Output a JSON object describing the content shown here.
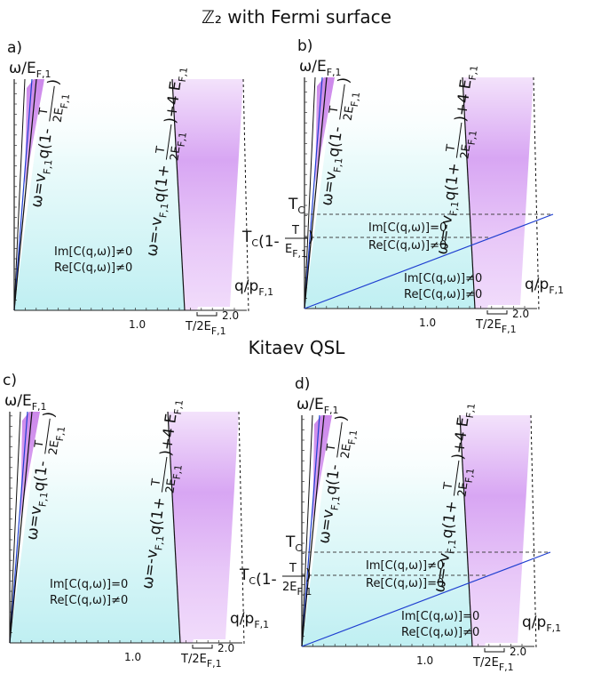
{
  "sections": [
    {
      "title": "ℤ₂ with Fermi surface"
    },
    {
      "title": "Kitaev QSL"
    }
  ],
  "panels": [
    {
      "label": "a)",
      "tc": false,
      "im": "Im[C(q,ω)]≠0",
      "re": "Re[C(q,ω)]≠0"
    },
    {
      "label": "b)",
      "tc": true,
      "upper_im": "Im[C(q,ω)]=0",
      "upper_re": "Re[C(q,ω)]≠0",
      "im": "Im[C(q,ω)]≠0",
      "re": "Re[C(q,ω)]≠0"
    },
    {
      "label": "c)",
      "tc": false,
      "im": "Im[C(q,ω)]=0",
      "re": "Re[C(q,ω)]≠0"
    },
    {
      "label": "d)",
      "tc": true,
      "upper_im": "Im[C(q,ω)]≠0",
      "upper_re": "Re[C(q,ω)]=0",
      "im": "Im[C(q,ω)]=0",
      "re": "Re[C(q,ω)]≠0"
    }
  ],
  "axes": {
    "y_main": "ω/E",
    "x_main": "q/p",
    "sub_F1": "F,1",
    "tick_1": "1.0",
    "tick_2": "2.0",
    "width_label": "T/2E",
    "tc_main": "T",
    "tc_sub": "C"
  },
  "formulas": {
    "lower_prefix": "ω=v",
    "lower_q": "q",
    "lower_one": "1-",
    "upper_prefix": "ω=-v",
    "upper_one": "1+",
    "upper_tail": "+4 E",
    "frac_num": "T",
    "frac_den": "2E",
    "tc_one": "1-",
    "tc_den_b": "E",
    "tc_den_d": "2E"
  },
  "colors": {
    "cyan_fill": "#bff0f0",
    "purple_fill": "#d39af0",
    "blue_line": "#1f3fd0",
    "black_line": "#111111"
  }
}
